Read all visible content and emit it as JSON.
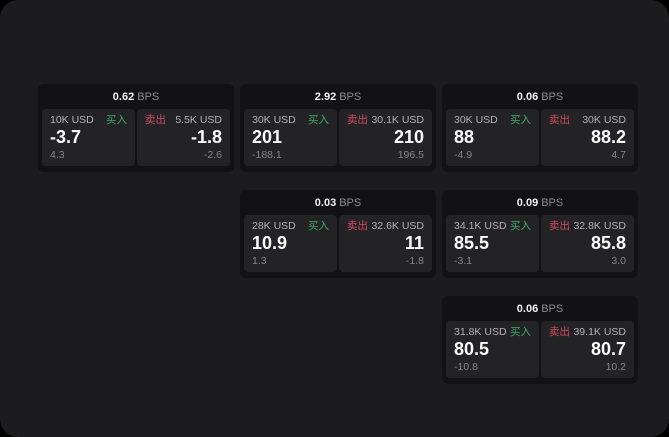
{
  "page": {
    "bps_unit": "BPS",
    "buy_label": "买入",
    "sell_label": "卖出"
  },
  "colors": {
    "background_outer": "#000000",
    "background": "#1c1c1e",
    "card_bg": "#121214",
    "panel_bg": "#232326",
    "buy_green": "#3cab6b",
    "sell_red": "#d34a5e"
  },
  "cards": [
    {
      "bps": "0.62",
      "buy": {
        "amount": "10K USD",
        "price": "-3.7",
        "delta": "4.3"
      },
      "sell": {
        "amount": "5.5K USD",
        "price": "-1.8",
        "delta": "-2.6"
      }
    },
    {
      "bps": "2.92",
      "buy": {
        "amount": "30K USD",
        "price": "201",
        "delta": "-188.1"
      },
      "sell": {
        "amount": "30.1K USD",
        "price": "210",
        "delta": "196.5"
      }
    },
    {
      "bps": "0.06",
      "buy": {
        "amount": "30K USD",
        "price": "88",
        "delta": "-4.9"
      },
      "sell": {
        "amount": "30K USD",
        "price": "88.2",
        "delta": "4.7"
      }
    },
    {
      "bps": "0.03",
      "buy": {
        "amount": "28K USD",
        "price": "10.9",
        "delta": "1.3"
      },
      "sell": {
        "amount": "32.6K USD",
        "price": "11",
        "delta": "-1.8"
      }
    },
    {
      "bps": "0.09",
      "buy": {
        "amount": "34.1K USD",
        "price": "85.5",
        "delta": "-3.1"
      },
      "sell": {
        "amount": "32.8K USD",
        "price": "85.8",
        "delta": "3.0"
      }
    },
    {
      "bps": "0.06",
      "buy": {
        "amount": "31.8K USD",
        "price": "80.5",
        "delta": "-10.8"
      },
      "sell": {
        "amount": "39.1K USD",
        "price": "80.7",
        "delta": "10.2"
      }
    }
  ]
}
